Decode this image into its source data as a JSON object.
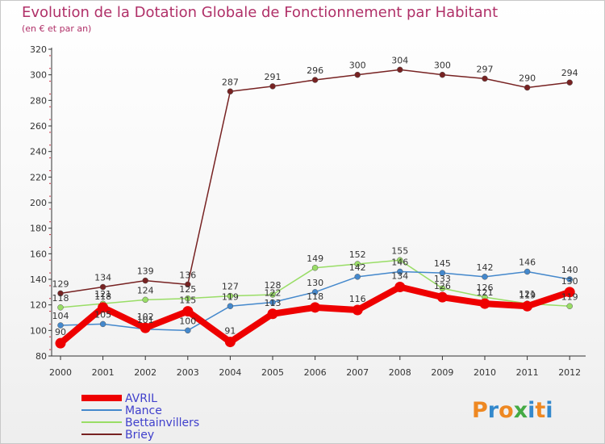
{
  "header": {
    "title": "Evolution de la Dotation Globale de Fonctionnement par Habitant",
    "subtitle": "(en € et par an)"
  },
  "logo": {
    "text": "Proxiti"
  },
  "chart_data": {
    "type": "line",
    "x": [
      "2000",
      "2001",
      "2002",
      "2003",
      "2004",
      "2005",
      "2006",
      "2007",
      "2008",
      "2009",
      "2010",
      "2011",
      "2012"
    ],
    "ylim": [
      80,
      320
    ],
    "yticks": [
      80,
      100,
      120,
      140,
      160,
      180,
      200,
      220,
      240,
      260,
      280,
      300,
      320
    ],
    "grid": false,
    "legend_position": "bottom-left",
    "series": [
      {
        "name": "AVRIL",
        "color": "#ee0000",
        "values": [
          90,
          118,
          102,
          115,
          91,
          113,
          118,
          116,
          134,
          126,
          121,
          119,
          130
        ]
      },
      {
        "name": "Mance",
        "color": "#4488cc",
        "values": [
          104,
          105,
          101,
          100,
          119,
          122,
          130,
          142,
          146,
          145,
          142,
          146,
          140
        ]
      },
      {
        "name": "Bettainvillers",
        "color": "#99dd66",
        "values": [
          118,
          121,
          124,
          125,
          127,
          128,
          149,
          152,
          155,
          133,
          126,
          121,
          119
        ]
      },
      {
        "name": "Briey",
        "color": "#772222",
        "values": [
          129,
          134,
          139,
          136,
          287,
          291,
          296,
          300,
          304,
          300,
          297,
          290,
          294
        ]
      }
    ],
    "data_labels": [
      {
        "series": "Briey",
        "values": [
          129,
          134,
          139,
          136,
          287,
          291,
          296,
          300,
          304,
          300,
          297,
          290,
          294
        ]
      },
      {
        "series": "Bettainvillers",
        "values": [
          118,
          121,
          124,
          125,
          127,
          128,
          149,
          152,
          155,
          133,
          126,
          121,
          119
        ]
      },
      {
        "series": "Mance",
        "values": [
          104,
          105,
          101,
          100,
          119,
          122,
          130,
          142,
          146,
          145,
          142,
          146,
          140
        ]
      },
      {
        "series": "AVRIL",
        "values": [
          90,
          118,
          102,
          115,
          91,
          113,
          118,
          116,
          134,
          126,
          121,
          119,
          130
        ]
      }
    ]
  }
}
